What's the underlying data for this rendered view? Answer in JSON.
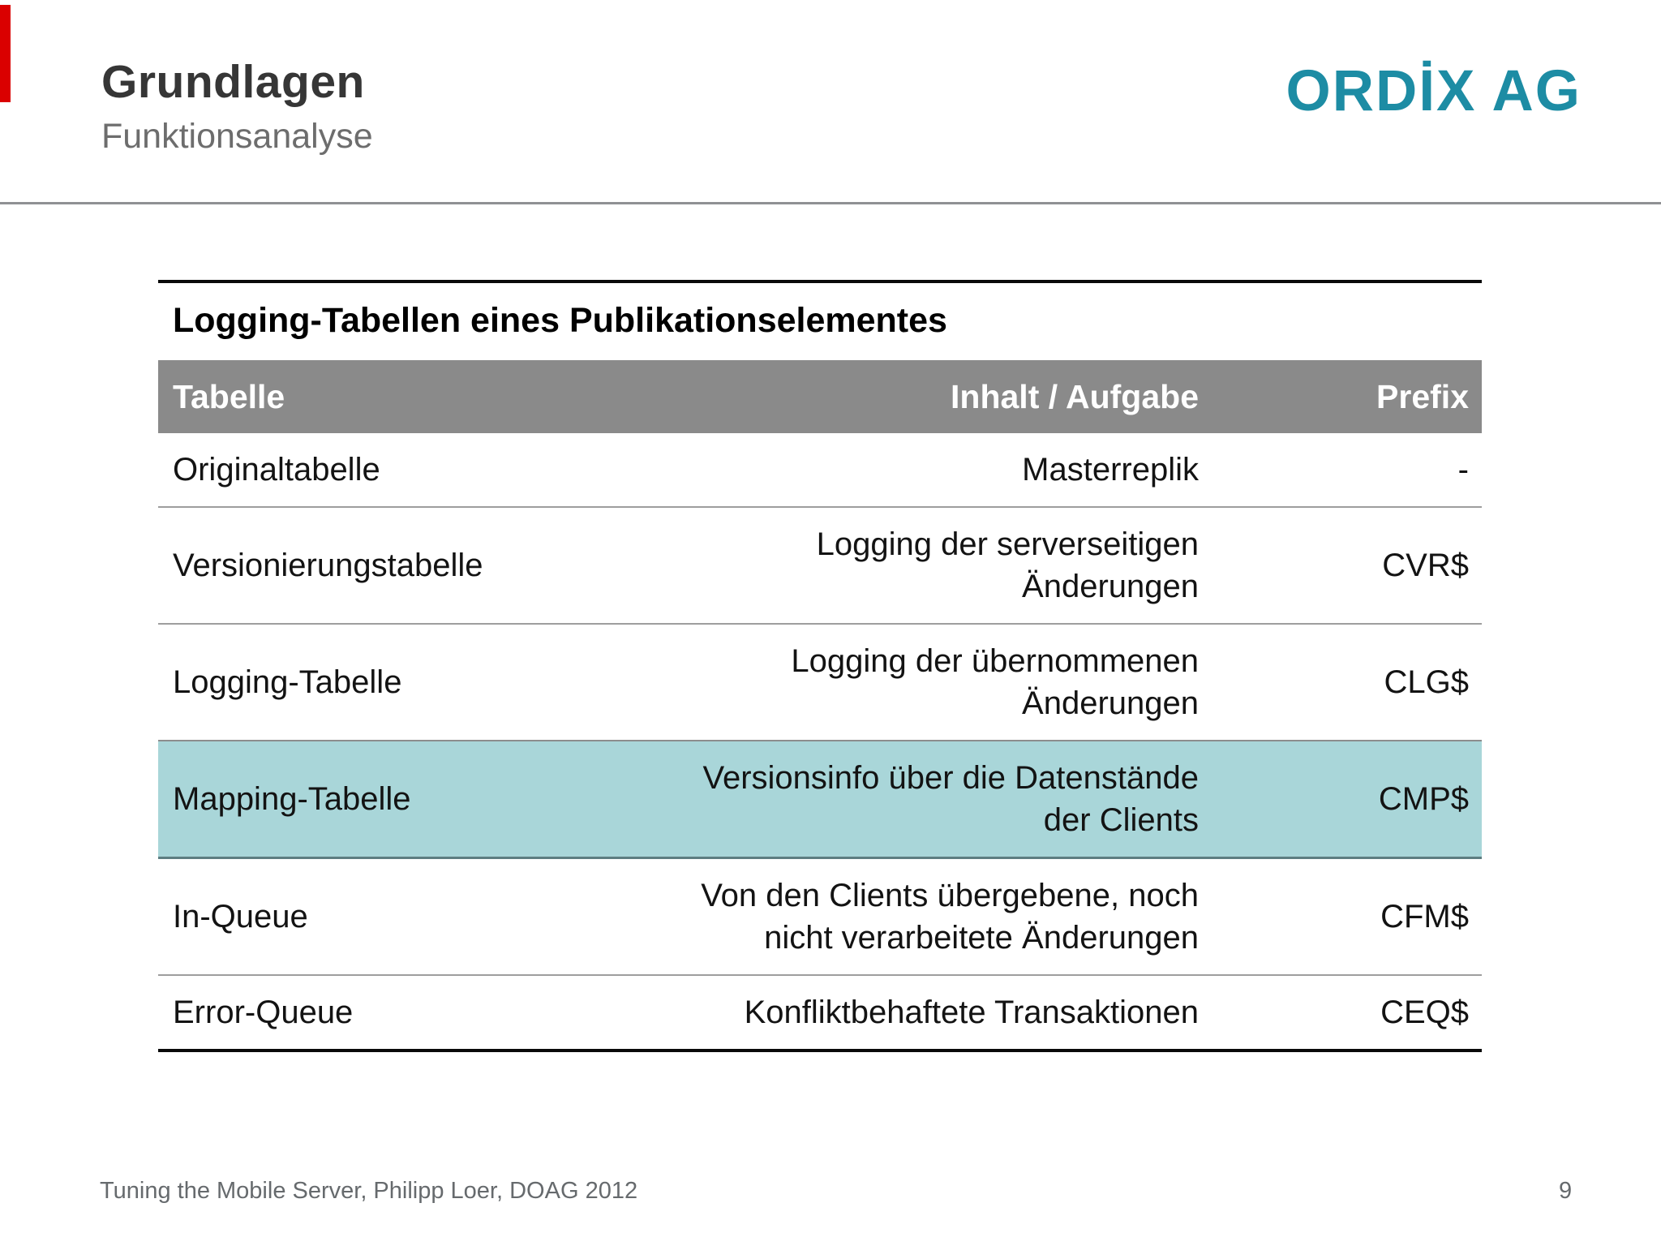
{
  "slide": {
    "header": {
      "title": "Grundlagen",
      "subtitle": "Funktionsanalyse",
      "logo_text": "ORDİX AG",
      "logo_color": "#1d8ca4",
      "accent_bar_color": "#da0000"
    },
    "table": {
      "caption": "Logging-Tabellen eines Publikationselementes",
      "columns": [
        "Tabelle",
        "Inhalt / Aufgabe",
        "Prefix"
      ],
      "header_bg": "#8a8a8a",
      "highlight_color": "#a9d6d9",
      "rows": [
        {
          "tabelle": "Originaltabelle",
          "inhalt": "Masterreplik",
          "prefix": "-"
        },
        {
          "tabelle": "Versionierungstabelle",
          "inhalt": "Logging der serverseitigen\nÄnderungen",
          "prefix": "CVR$"
        },
        {
          "tabelle": "Logging-Tabelle",
          "inhalt": "Logging der übernommenen\nÄnderungen",
          "prefix": "CLG$"
        },
        {
          "tabelle": "Mapping-Tabelle",
          "inhalt": "Versionsinfo über die Datenstände\nder Clients",
          "prefix": "CMP$"
        },
        {
          "tabelle": "In-Queue",
          "inhalt": "Von den Clients übergebene, noch\nnicht verarbeitete Änderungen",
          "prefix": "CFM$"
        },
        {
          "tabelle": "Error-Queue",
          "inhalt": "Konfliktbehaftete Transaktionen",
          "prefix": "CEQ$"
        }
      ]
    },
    "footer": {
      "left": "Tuning the Mobile Server, Philipp Loer, DOAG 2012",
      "page_number": "9"
    }
  }
}
